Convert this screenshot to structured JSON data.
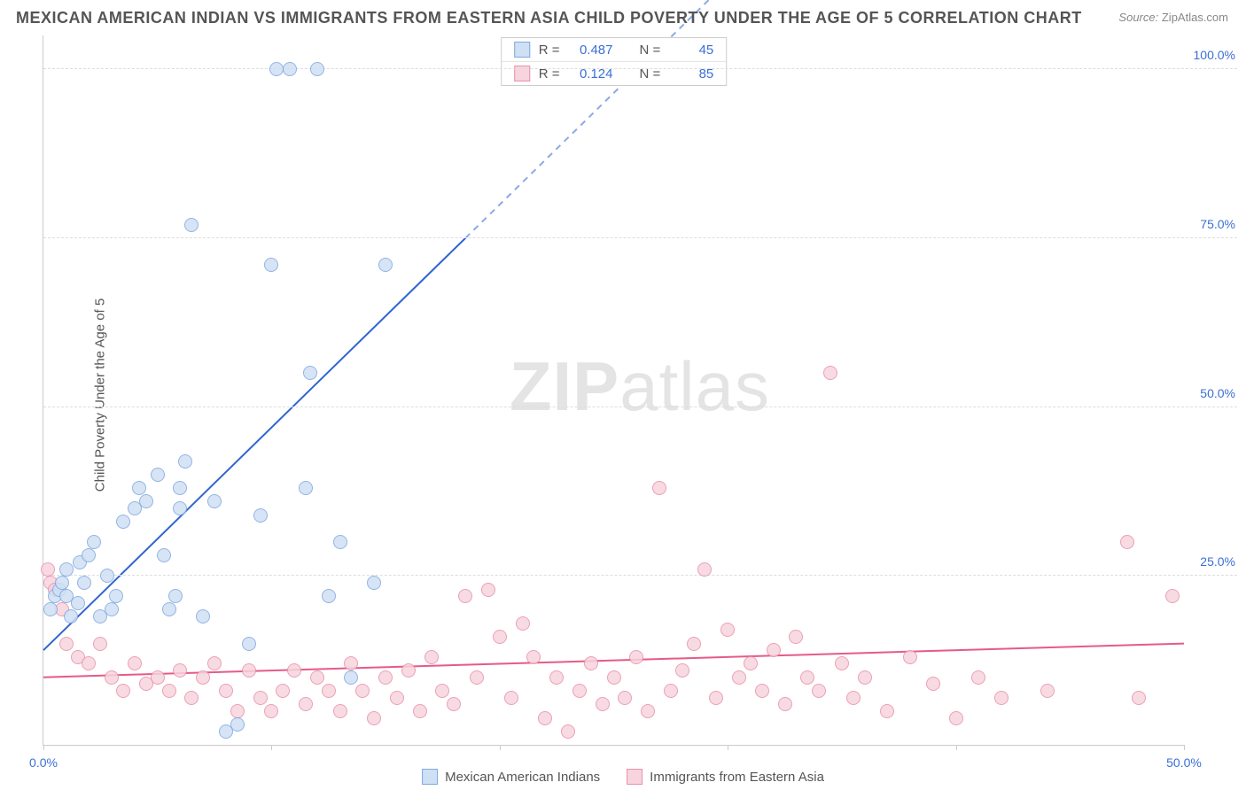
{
  "title": "MEXICAN AMERICAN INDIAN VS IMMIGRANTS FROM EASTERN ASIA CHILD POVERTY UNDER THE AGE OF 5 CORRELATION CHART",
  "source_label": "Source:",
  "source_value": "ZipAtlas.com",
  "ylabel": "Child Poverty Under the Age of 5",
  "watermark_bold": "ZIP",
  "watermark_rest": "atlas",
  "chart": {
    "type": "scatter",
    "xlim": [
      0,
      50
    ],
    "ylim": [
      0,
      105
    ],
    "xticks": [
      0,
      10,
      20,
      30,
      40,
      50
    ],
    "xtick_labels": {
      "0": "0.0%",
      "50": "50.0%"
    },
    "yticks": [
      25,
      50,
      75,
      100
    ],
    "ytick_labels": {
      "25": "25.0%",
      "50": "50.0%",
      "75": "75.0%",
      "100": "100.0%"
    },
    "background_color": "#ffffff",
    "grid_color": "#dddddd",
    "axis_color": "#cccccc",
    "tick_label_color": "#3b6fd6",
    "marker_radius": 8,
    "marker_stroke_width": 1.5,
    "series": [
      {
        "name": "Mexican American Indians",
        "fill": "#cfe0f5",
        "stroke": "#7fa8dd",
        "stats": {
          "R": "0.487",
          "N": "45"
        },
        "trend": {
          "x1": 0,
          "y1": 14,
          "x2": 18.5,
          "y2": 75,
          "solid_end_x": 18.5,
          "dash_end_x": 30,
          "dash_end_y": 113,
          "color": "#2f64d0",
          "width": 2
        },
        "points": [
          [
            0.3,
            20
          ],
          [
            0.5,
            22
          ],
          [
            0.7,
            23
          ],
          [
            0.8,
            24
          ],
          [
            1.0,
            22
          ],
          [
            1.0,
            26
          ],
          [
            1.2,
            19
          ],
          [
            1.5,
            21
          ],
          [
            1.6,
            27
          ],
          [
            1.8,
            24
          ],
          [
            2.0,
            28
          ],
          [
            2.2,
            30
          ],
          [
            2.5,
            19
          ],
          [
            2.8,
            25
          ],
          [
            3.0,
            20
          ],
          [
            3.2,
            22
          ],
          [
            3.5,
            33
          ],
          [
            4.0,
            35
          ],
          [
            4.2,
            38
          ],
          [
            4.5,
            36
          ],
          [
            5.0,
            40
          ],
          [
            5.3,
            28
          ],
          [
            5.5,
            20
          ],
          [
            5.8,
            22
          ],
          [
            6.0,
            38
          ],
          [
            6.0,
            35
          ],
          [
            6.2,
            42
          ],
          [
            6.5,
            77
          ],
          [
            7.0,
            19
          ],
          [
            7.5,
            36
          ],
          [
            8.0,
            2
          ],
          [
            8.5,
            3
          ],
          [
            9.0,
            15
          ],
          [
            9.5,
            34
          ],
          [
            10.0,
            71
          ],
          [
            10.2,
            100
          ],
          [
            10.8,
            100
          ],
          [
            11.5,
            38
          ],
          [
            11.7,
            55
          ],
          [
            12.0,
            100
          ],
          [
            12.5,
            22
          ],
          [
            13.0,
            30
          ],
          [
            13.5,
            10
          ],
          [
            15.0,
            71
          ],
          [
            14.5,
            24
          ]
        ]
      },
      {
        "name": "Immigrants from Eastern Asia",
        "fill": "#f7d4de",
        "stroke": "#e890aa",
        "stats": {
          "R": "0.124",
          "N": "85"
        },
        "trend": {
          "x1": 0,
          "y1": 10,
          "x2": 50,
          "y2": 15,
          "solid_end_x": 50,
          "color": "#e65a87",
          "width": 2
        },
        "points": [
          [
            0.2,
            26
          ],
          [
            0.3,
            24
          ],
          [
            0.5,
            23
          ],
          [
            0.8,
            20
          ],
          [
            1.0,
            15
          ],
          [
            1.5,
            13
          ],
          [
            2.0,
            12
          ],
          [
            2.5,
            15
          ],
          [
            3.0,
            10
          ],
          [
            3.5,
            8
          ],
          [
            4.0,
            12
          ],
          [
            4.5,
            9
          ],
          [
            5.0,
            10
          ],
          [
            5.5,
            8
          ],
          [
            6.0,
            11
          ],
          [
            6.5,
            7
          ],
          [
            7.0,
            10
          ],
          [
            7.5,
            12
          ],
          [
            8.0,
            8
          ],
          [
            8.5,
            5
          ],
          [
            9.0,
            11
          ],
          [
            9.5,
            7
          ],
          [
            10.0,
            5
          ],
          [
            10.5,
            8
          ],
          [
            11.0,
            11
          ],
          [
            11.5,
            6
          ],
          [
            12.0,
            10
          ],
          [
            12.5,
            8
          ],
          [
            13.0,
            5
          ],
          [
            13.5,
            12
          ],
          [
            14.0,
            8
          ],
          [
            14.5,
            4
          ],
          [
            15.0,
            10
          ],
          [
            15.5,
            7
          ],
          [
            16.0,
            11
          ],
          [
            16.5,
            5
          ],
          [
            17.0,
            13
          ],
          [
            17.5,
            8
          ],
          [
            18.0,
            6
          ],
          [
            18.5,
            22
          ],
          [
            19.0,
            10
          ],
          [
            19.5,
            23
          ],
          [
            20.0,
            16
          ],
          [
            20.5,
            7
          ],
          [
            21.0,
            18
          ],
          [
            21.5,
            13
          ],
          [
            22.0,
            4
          ],
          [
            22.5,
            10
          ],
          [
            23.0,
            2
          ],
          [
            23.5,
            8
          ],
          [
            24.0,
            12
          ],
          [
            24.5,
            6
          ],
          [
            25.0,
            10
          ],
          [
            25.5,
            7
          ],
          [
            26.0,
            13
          ],
          [
            26.5,
            5
          ],
          [
            27.0,
            38
          ],
          [
            27.5,
            8
          ],
          [
            28.0,
            11
          ],
          [
            28.5,
            15
          ],
          [
            29.0,
            26
          ],
          [
            29.5,
            7
          ],
          [
            30.0,
            17
          ],
          [
            30.5,
            10
          ],
          [
            31.0,
            12
          ],
          [
            31.5,
            8
          ],
          [
            32.0,
            14
          ],
          [
            32.5,
            6
          ],
          [
            33.0,
            16
          ],
          [
            33.5,
            10
          ],
          [
            34.0,
            8
          ],
          [
            34.5,
            55
          ],
          [
            35.0,
            12
          ],
          [
            35.5,
            7
          ],
          [
            36.0,
            10
          ],
          [
            37.0,
            5
          ],
          [
            38.0,
            13
          ],
          [
            39.0,
            9
          ],
          [
            40.0,
            4
          ],
          [
            41.0,
            10
          ],
          [
            42.0,
            7
          ],
          [
            44.0,
            8
          ],
          [
            47.5,
            30
          ],
          [
            48.0,
            7
          ],
          [
            49.5,
            22
          ]
        ]
      }
    ]
  },
  "stats_box": {
    "R_label": "R =",
    "N_label": "N ="
  }
}
